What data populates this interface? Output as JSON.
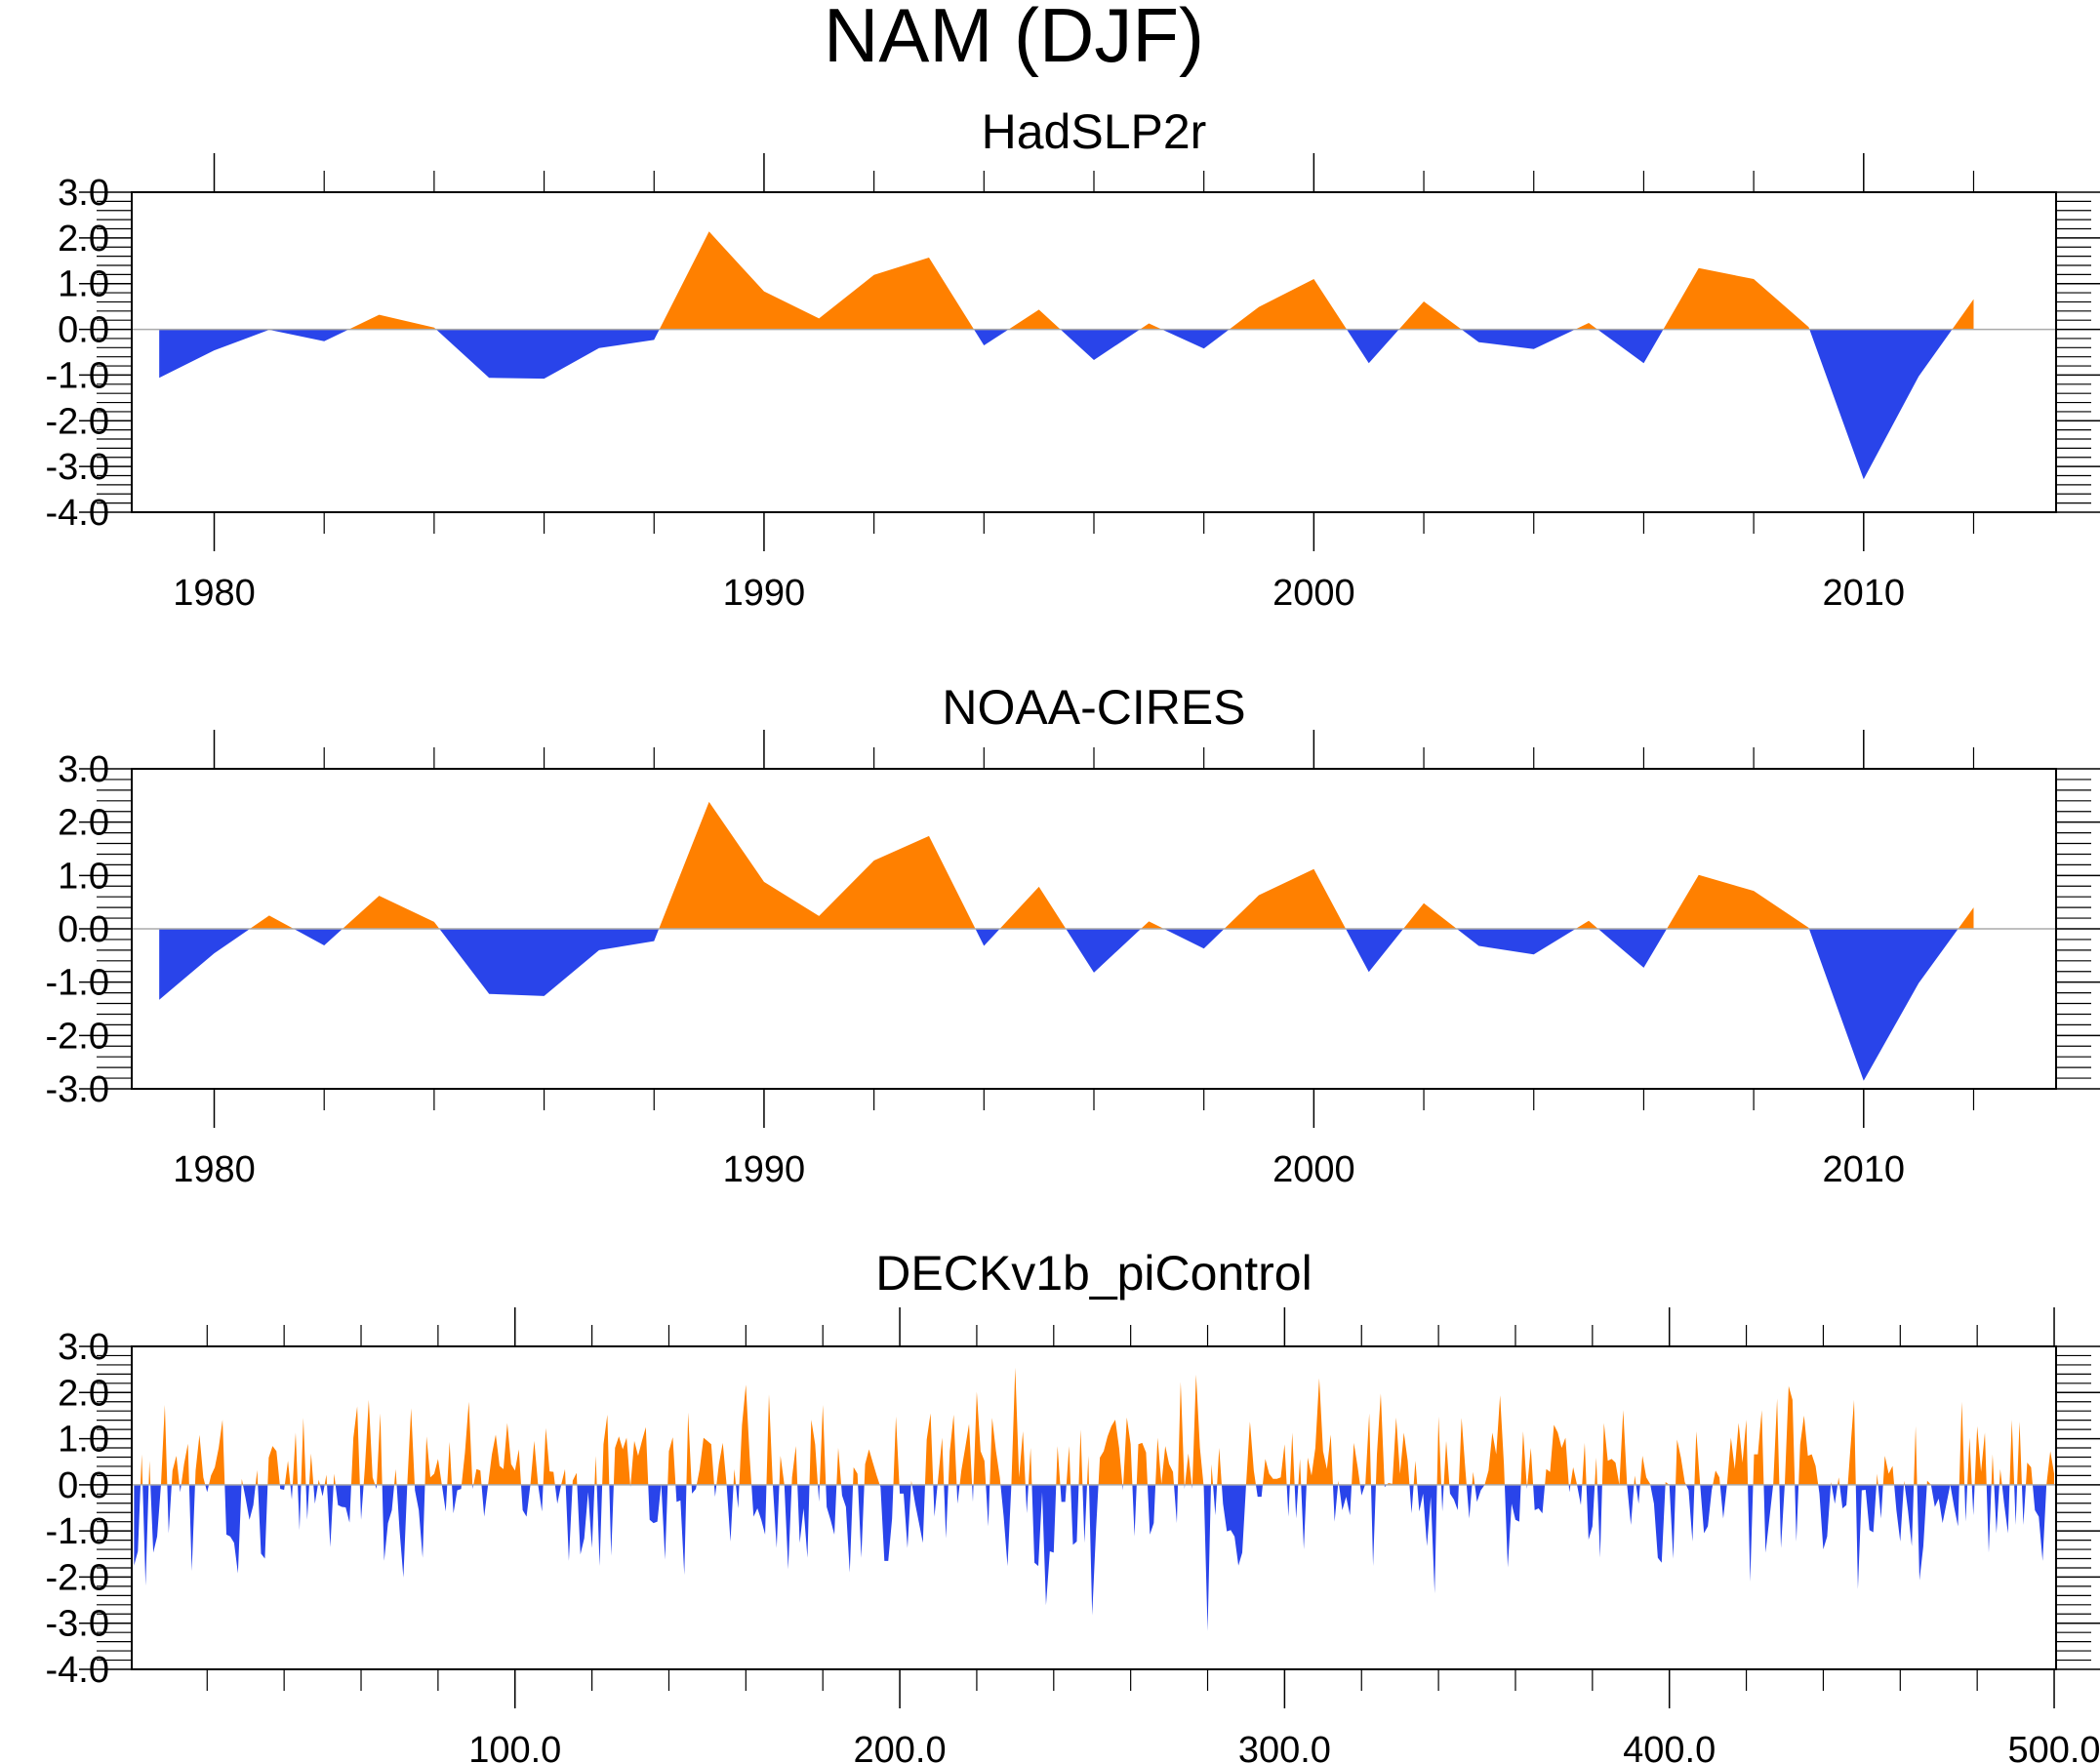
{
  "chart_data": {
    "title": "NAM (DJF)",
    "type": "area",
    "colors": {
      "positive": "#ff8000",
      "negative": "#2944ea"
    },
    "panels": [
      {
        "title": "HadSLP2r",
        "type": "area",
        "xlabel": "",
        "ylabel": "",
        "xlim": [
          1978.5,
          2013.5
        ],
        "ylim": [
          -4.0,
          3.0
        ],
        "yticks": [
          3.0,
          2.0,
          1.0,
          0.0,
          -1.0,
          -2.0,
          -3.0,
          -4.0
        ],
        "ytick_labels": [
          "3.0",
          "2.0",
          "1.0",
          "0.0",
          "-1.0",
          "-2.0",
          "-3.0",
          "-4.0"
        ],
        "xticks": [
          1980,
          1990,
          2000,
          2010
        ],
        "xtick_labels": [
          "1980",
          "1990",
          "2000",
          "2010"
        ],
        "x_minor_step": 2,
        "y_minor_step": 0.2,
        "x": [
          1979,
          1980,
          1981,
          1982,
          1983,
          1984,
          1985,
          1986,
          1987,
          1988,
          1989,
          1990,
          1991,
          1992,
          1993,
          1994,
          1995,
          1996,
          1997,
          1998,
          1999,
          2000,
          2001,
          2002,
          2003,
          2004,
          2005,
          2006,
          2007,
          2008,
          2009,
          2010,
          2011,
          2012
        ],
        "values": [
          -1.06,
          -0.46,
          -0.01,
          -0.26,
          0.32,
          0.04,
          -1.06,
          -1.08,
          -0.41,
          -0.23,
          2.14,
          0.83,
          0.24,
          1.19,
          1.57,
          -0.35,
          0.43,
          -0.67,
          0.13,
          -0.42,
          0.49,
          1.1,
          -0.74,
          0.61,
          -0.28,
          -0.43,
          0.14,
          -0.74,
          1.34,
          1.1,
          0.05,
          -3.28,
          -1.03,
          0.66
        ]
      },
      {
        "title": "NOAA-CIRES",
        "type": "area",
        "xlabel": "",
        "ylabel": "",
        "xlim": [
          1978.5,
          2013.5
        ],
        "ylim": [
          -3.0,
          3.0
        ],
        "yticks": [
          3.0,
          2.0,
          1.0,
          0.0,
          -1.0,
          -2.0,
          -3.0
        ],
        "ytick_labels": [
          "3.0",
          "2.0",
          "1.0",
          "0.0",
          "-1.0",
          "-2.0",
          "-3.0"
        ],
        "xticks": [
          1980,
          1990,
          2000,
          2010
        ],
        "xtick_labels": [
          "1980",
          "1990",
          "2000",
          "2010"
        ],
        "x_minor_step": 2,
        "y_minor_step": 0.2,
        "x": [
          1979,
          1980,
          1981,
          1982,
          1983,
          1984,
          1985,
          1986,
          1987,
          1988,
          1989,
          1990,
          1991,
          1992,
          1993,
          1994,
          1995,
          1996,
          1997,
          1998,
          1999,
          2000,
          2001,
          2002,
          2003,
          2004,
          2005,
          2006,
          2007,
          2008,
          2009,
          2010,
          2011,
          2012
        ],
        "values": [
          -1.33,
          -0.46,
          0.25,
          -0.31,
          0.62,
          0.13,
          -1.22,
          -1.26,
          -0.4,
          -0.23,
          2.38,
          0.88,
          0.24,
          1.28,
          1.74,
          -0.32,
          0.79,
          -0.82,
          0.14,
          -0.37,
          0.63,
          1.12,
          -0.81,
          0.48,
          -0.32,
          -0.48,
          0.15,
          -0.73,
          1.01,
          0.71,
          0.02,
          -2.85,
          -1.02,
          0.4
        ]
      },
      {
        "title": "DECKv1b_piControl",
        "type": "area",
        "xlabel": "",
        "ylabel": "",
        "xlim": [
          0.4,
          500.5
        ],
        "ylim": [
          -4.0,
          3.0
        ],
        "yticks": [
          3.0,
          2.0,
          1.0,
          0.0,
          -1.0,
          -2.0,
          -3.0,
          -4.0
        ],
        "ytick_labels": [
          "3.0",
          "2.0",
          "1.0",
          "0.0",
          "-1.0",
          "-2.0",
          "-3.0",
          "-4.0"
        ],
        "xticks": [
          100,
          200,
          300,
          400,
          500
        ],
        "xtick_labels": [
          "100.0",
          "200.0",
          "300.0",
          "400.0",
          "500.0"
        ],
        "x_minor_step": 20,
        "y_minor_step": 0.2,
        "x_start": 1,
        "values": [
          -1.75,
          -1.44,
          0.66,
          -2.19,
          0.52,
          -1.47,
          -1.12,
          0.0,
          1.73,
          -1.05,
          0.31,
          0.63,
          -0.16,
          0.45,
          0.89,
          -1.87,
          0.31,
          1.08,
          0.16,
          -0.16,
          0.2,
          0.38,
          0.8,
          1.41,
          -1.08,
          -1.12,
          -1.26,
          -1.92,
          0.13,
          -0.3,
          -0.76,
          -0.44,
          0.32,
          -1.49,
          -1.6,
          0.59,
          0.84,
          0.73,
          -0.09,
          -0.11,
          0.52,
          -0.32,
          1.13,
          -0.98,
          1.45,
          -0.76,
          0.68,
          -0.41,
          0.11,
          -0.25,
          0.22,
          -1.35,
          0.24,
          -0.44,
          -0.48,
          -0.49,
          -0.82,
          1.02,
          1.7,
          -0.76,
          0.38,
          1.84,
          0.16,
          -0.09,
          1.55,
          -1.65,
          -0.83,
          -0.55,
          0.34,
          -0.98,
          -2.01,
          0.0,
          1.66,
          -0.12,
          -0.55,
          -1.58,
          1.05,
          0.16,
          0.24,
          0.56,
          0.0,
          -0.58,
          0.93,
          -0.62,
          -0.12,
          -0.09,
          0.7,
          1.8,
          -0.09,
          0.34,
          0.31,
          -0.69,
          0.0,
          0.66,
          1.09,
          0.41,
          0.34,
          1.34,
          0.45,
          0.31,
          0.77,
          -0.55,
          -0.69,
          0.0,
          0.95,
          0.0,
          -0.58,
          1.23,
          0.29,
          0.28,
          -0.41,
          0.0,
          0.34,
          -1.65,
          0.09,
          0.26,
          -1.51,
          -1.16,
          -0.16,
          -1.37,
          0.63,
          -1.76,
          0.88,
          1.52,
          -1.54,
          0.8,
          1.05,
          0.77,
          1.02,
          -0.05,
          0.95,
          0.63,
          0.95,
          1.25,
          -0.76,
          -0.83,
          -0.8,
          0.02,
          -1.62,
          0.73,
          1.03,
          -0.37,
          -0.34,
          -1.95,
          1.57,
          -0.19,
          -0.09,
          0.34,
          1.02,
          0.95,
          0.88,
          -0.26,
          0.45,
          0.91,
          0.0,
          -1.23,
          0.34,
          -0.51,
          1.3,
          2.17,
          0.59,
          -0.69,
          -0.51,
          -0.76,
          -1.08,
          1.96,
          0.0,
          -1.37,
          0.63,
          0.0,
          -1.83,
          0.16,
          0.84,
          -1.26,
          -0.51,
          -1.58,
          1.41,
          0.88,
          -0.37,
          1.73,
          -0.48,
          -0.76,
          -1.08,
          0.8,
          -0.23,
          -0.48,
          -1.9,
          0.38,
          0.24,
          -1.58,
          0.45,
          0.77,
          0.48,
          0.2,
          -0.05,
          -1.65,
          -1.65,
          -0.73,
          1.48,
          -0.19,
          -0.19,
          -1.37,
          0.09,
          -0.41,
          -0.83,
          -1.26,
          0.98,
          1.55,
          -0.69,
          0.16,
          1.02,
          -1.16,
          0.73,
          1.52,
          -0.41,
          0.31,
          0.8,
          1.32,
          -0.37,
          2.02,
          0.73,
          0.52,
          -0.9,
          1.45,
          0.73,
          0.16,
          -0.69,
          -1.76,
          0.0,
          2.54,
          0.16,
          1.16,
          -0.62,
          0.8,
          -1.69,
          -1.76,
          -0.16,
          -2.61,
          -1.44,
          -1.47,
          0.84,
          -0.37,
          -0.37,
          0.84,
          -1.3,
          -1.23,
          1.2,
          -1.26,
          0.63,
          -2.83,
          -0.98,
          0.59,
          0.73,
          1.05,
          1.27,
          1.41,
          0.8,
          -0.12,
          1.46,
          0.88,
          -1.12,
          0.88,
          0.91,
          0.7,
          -1.08,
          -0.83,
          1.02,
          0.02,
          0.84,
          0.45,
          0.28,
          -0.83,
          2.23,
          -0.09,
          0.68,
          -0.09,
          2.39,
          0.8,
          -0.05,
          -3.17,
          0.45,
          -0.66,
          0.8,
          -0.41,
          -1.01,
          -0.98,
          -1.12,
          -1.75,
          -1.47,
          0.0,
          1.37,
          0.31,
          -0.26,
          -0.26,
          0.56,
          0.24,
          0.13,
          0.13,
          0.16,
          0.88,
          -0.69,
          1.13,
          -0.73,
          0.56,
          -1.4,
          0.59,
          0.2,
          0.8,
          2.31,
          0.73,
          0.34,
          1.09,
          -0.8,
          0.09,
          -0.55,
          -0.26,
          -0.66,
          0.91,
          0.38,
          -0.23,
          0.02,
          1.55,
          -1.76,
          0.66,
          1.98,
          -0.05,
          0.04,
          0.02,
          1.46,
          0.24,
          1.13,
          0.52,
          -0.62,
          0.52,
          -0.58,
          -0.19,
          -1.33,
          -0.26,
          -2.35,
          1.48,
          -0.58,
          0.95,
          -0.19,
          -0.32,
          -0.55,
          1.45,
          0.31,
          -0.73,
          0.28,
          -0.37,
          -0.12,
          0.0,
          0.31,
          1.13,
          0.66,
          1.94,
          0.45,
          -1.79,
          -0.41,
          -0.76,
          -0.8,
          1.16,
          -0.09,
          0.8,
          -0.55,
          -0.51,
          -0.62,
          0.34,
          0.28,
          1.3,
          1.13,
          0.8,
          1.02,
          -0.16,
          0.38,
          0.0,
          -0.44,
          0.91,
          -1.19,
          -0.9,
          0.59,
          -1.58,
          1.34,
          0.52,
          0.56,
          0.48,
          0.0,
          1.62,
          0.0,
          -0.87,
          0.2,
          -0.41,
          0.63,
          0.16,
          0.02,
          -0.41,
          -1.58,
          -1.69,
          0.06,
          0.0,
          -1.6,
          0.98,
          0.59,
          0.06,
          -0.12,
          -1.23,
          1.16,
          0.0,
          -1.05,
          -0.9,
          -0.12,
          0.31,
          0.16,
          -0.73,
          0.02,
          1.02,
          0.34,
          1.34,
          0.48,
          1.41,
          -2.1,
          0.66,
          0.66,
          1.62,
          -1.47,
          -0.73,
          0.02,
          1.87,
          -1.37,
          0.02,
          2.14,
          1.84,
          -1.23,
          0.88,
          1.5,
          0.63,
          0.66,
          0.41,
          -0.19,
          -1.4,
          -1.12,
          0.06,
          -0.41,
          0.16,
          -0.51,
          -0.44,
          0.73,
          1.84,
          -2.26,
          -0.12,
          -0.11,
          -0.98,
          -1.03,
          0.24,
          -0.73,
          0.63,
          0.24,
          0.41,
          -0.55,
          -1.23,
          0.09,
          -0.55,
          -1.33,
          1.27,
          -2.07,
          -1.33,
          0.09,
          0.0,
          -0.48,
          -0.3,
          -0.83,
          -0.41,
          0.0,
          -0.48,
          -0.9,
          1.8,
          -0.8,
          1.02,
          -0.66,
          1.27,
          0.28,
          1.13,
          -1.47,
          0.66,
          -1.05,
          0.34,
          -0.41,
          -1.05,
          1.41,
          -0.87,
          1.37,
          -0.87,
          0.48,
          0.38,
          -0.55,
          -0.69,
          -1.65,
          0.0,
          0.73,
          0.24
        ]
      }
    ]
  }
}
